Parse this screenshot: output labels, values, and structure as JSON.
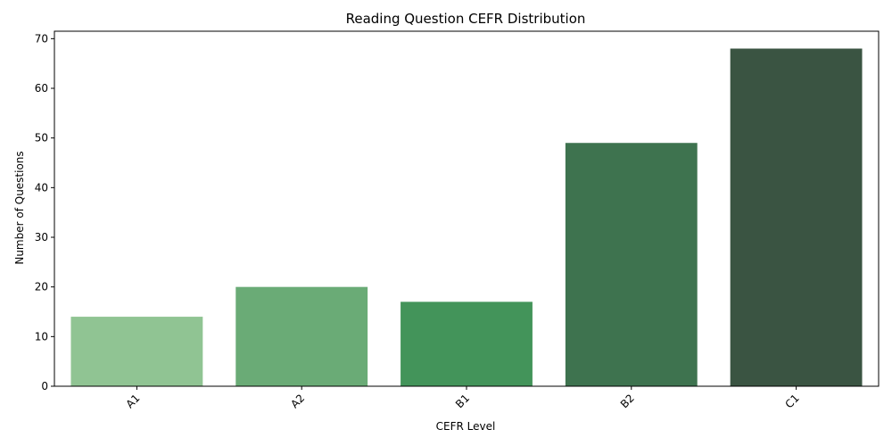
{
  "chart_data": {
    "type": "bar",
    "title": "Reading Question CEFR Distribution",
    "xlabel": "CEFR Level",
    "ylabel": "Number of Questions",
    "categories": [
      "A1",
      "A2",
      "B1",
      "B2",
      "C1"
    ],
    "values": [
      14,
      20,
      17,
      49,
      68
    ],
    "colors": [
      "#90c493",
      "#6aab76",
      "#43945a",
      "#3e734f",
      "#3a5442"
    ],
    "ylim": [
      0,
      71.5
    ],
    "yticks": [
      0,
      10,
      20,
      30,
      40,
      50,
      60,
      70
    ],
    "grid": false,
    "legend": "none",
    "x_tick_rotation": "45 degrees"
  }
}
